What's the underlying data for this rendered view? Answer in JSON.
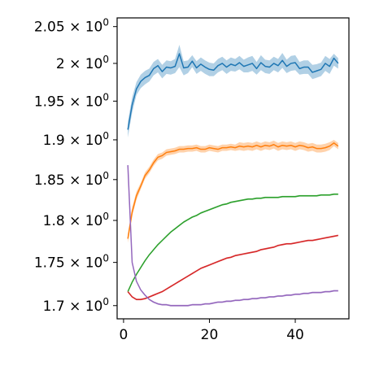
{
  "chart_data": {
    "type": "line",
    "title": "",
    "xlabel": "",
    "ylabel": "",
    "yscale": "log",
    "grid": false,
    "legend": "none",
    "xlim": [
      -1.5,
      52.5
    ],
    "ylim": [
      1.685,
      2.062
    ],
    "xticks": [
      {
        "value": 0,
        "label": "0"
      },
      {
        "value": 20,
        "label": "20"
      },
      {
        "value": 40,
        "label": "40"
      }
    ],
    "yticks": [
      {
        "value": 1.7,
        "base": "1.7"
      },
      {
        "value": 1.75,
        "base": "1.75"
      },
      {
        "value": 1.8,
        "base": "1.8"
      },
      {
        "value": 1.85,
        "base": "1.85"
      },
      {
        "value": 1.9,
        "base": "1.9"
      },
      {
        "value": 1.95,
        "base": "1.95"
      },
      {
        "value": 2.0,
        "base": "2"
      },
      {
        "value": 2.05,
        "base": "2.05"
      }
    ],
    "series": [
      {
        "color": "#1f77b4",
        "x": [
          1,
          2,
          3,
          4,
          5,
          6,
          7,
          8,
          9,
          10,
          11,
          12,
          13,
          14,
          15,
          16,
          17,
          18,
          19,
          20,
          21,
          22,
          23,
          24,
          25,
          26,
          27,
          28,
          29,
          30,
          31,
          32,
          33,
          34,
          35,
          36,
          37,
          38,
          39,
          40,
          41,
          42,
          43,
          44,
          45,
          46,
          47,
          48,
          49,
          50
        ],
        "y": [
          1.913,
          1.945,
          1.966,
          1.976,
          1.981,
          1.984,
          1.993,
          1.997,
          1.989,
          1.995,
          1.994,
          1.996,
          2.013,
          1.994,
          1.995,
          2.003,
          1.994,
          1.999,
          1.995,
          1.992,
          1.991,
          1.997,
          2.0,
          1.995,
          1.999,
          1.997,
          2.001,
          1.996,
          1.998,
          2.0,
          1.993,
          2.001,
          1.996,
          1.995,
          2.0,
          1.997,
          2.004,
          1.996,
          2.0,
          2.001,
          1.993,
          1.995,
          1.995,
          1.988,
          1.99,
          1.992,
          2.0,
          1.996,
          2.007,
          2.0
        ],
        "lower": [
          1.903,
          1.935,
          1.958,
          1.967,
          1.972,
          1.976,
          1.984,
          1.988,
          1.98,
          1.986,
          1.985,
          1.987,
          1.995,
          1.984,
          1.987,
          1.995,
          1.986,
          1.99,
          1.986,
          1.983,
          1.983,
          1.988,
          1.991,
          1.986,
          1.99,
          1.989,
          1.992,
          1.988,
          1.988,
          1.99,
          1.985,
          1.991,
          1.987,
          1.986,
          1.991,
          1.988,
          1.994,
          1.987,
          1.99,
          1.991,
          1.985,
          1.986,
          1.986,
          1.979,
          1.981,
          1.983,
          1.99,
          1.986,
          1.997,
          1.993
        ],
        "upper": [
          1.923,
          1.955,
          1.975,
          1.985,
          1.99,
          1.993,
          2.002,
          2.006,
          1.998,
          2.004,
          2.003,
          2.006,
          2.025,
          2.003,
          2.004,
          2.011,
          2.003,
          2.008,
          2.004,
          2.001,
          2.0,
          2.006,
          2.009,
          2.004,
          2.008,
          2.006,
          2.01,
          2.005,
          2.008,
          2.01,
          2.002,
          2.011,
          2.005,
          2.004,
          2.009,
          2.006,
          2.014,
          2.005,
          2.01,
          2.011,
          2.002,
          2.004,
          2.004,
          1.998,
          1.999,
          2.001,
          2.01,
          2.006,
          2.013,
          2.007
        ]
      },
      {
        "color": "#ff7f0e",
        "x": [
          1,
          2,
          3,
          4,
          5,
          6,
          7,
          8,
          9,
          10,
          11,
          12,
          13,
          14,
          15,
          16,
          17,
          18,
          19,
          20,
          21,
          22,
          23,
          24,
          25,
          26,
          27,
          28,
          29,
          30,
          31,
          32,
          33,
          34,
          35,
          36,
          37,
          38,
          39,
          40,
          41,
          42,
          43,
          44,
          45,
          46,
          47,
          48,
          49,
          50
        ],
        "y": [
          1.778,
          1.81,
          1.83,
          1.842,
          1.855,
          1.862,
          1.871,
          1.878,
          1.88,
          1.884,
          1.885,
          1.886,
          1.888,
          1.888,
          1.889,
          1.889,
          1.89,
          1.888,
          1.888,
          1.89,
          1.889,
          1.888,
          1.89,
          1.89,
          1.891,
          1.89,
          1.892,
          1.891,
          1.892,
          1.891,
          1.893,
          1.891,
          1.893,
          1.892,
          1.894,
          1.891,
          1.893,
          1.892,
          1.893,
          1.891,
          1.893,
          1.892,
          1.89,
          1.891,
          1.889,
          1.889,
          1.89,
          1.892,
          1.896,
          1.892
        ],
        "lower": [
          1.773,
          1.805,
          1.825,
          1.838,
          1.851,
          1.858,
          1.867,
          1.874,
          1.876,
          1.88,
          1.881,
          1.882,
          1.884,
          1.884,
          1.885,
          1.885,
          1.886,
          1.884,
          1.884,
          1.886,
          1.885,
          1.884,
          1.886,
          1.886,
          1.887,
          1.886,
          1.887,
          1.886,
          1.887,
          1.886,
          1.888,
          1.886,
          1.888,
          1.887,
          1.889,
          1.886,
          1.888,
          1.887,
          1.888,
          1.886,
          1.888,
          1.887,
          1.885,
          1.886,
          1.884,
          1.884,
          1.885,
          1.887,
          1.892,
          1.888
        ],
        "upper": [
          1.784,
          1.816,
          1.835,
          1.846,
          1.859,
          1.866,
          1.875,
          1.882,
          1.884,
          1.888,
          1.889,
          1.89,
          1.892,
          1.892,
          1.893,
          1.893,
          1.894,
          1.892,
          1.892,
          1.894,
          1.893,
          1.892,
          1.894,
          1.894,
          1.895,
          1.894,
          1.897,
          1.896,
          1.897,
          1.896,
          1.898,
          1.896,
          1.898,
          1.897,
          1.899,
          1.896,
          1.898,
          1.897,
          1.898,
          1.896,
          1.898,
          1.897,
          1.895,
          1.896,
          1.894,
          1.894,
          1.895,
          1.897,
          1.9,
          1.896
        ]
      },
      {
        "color": "#2ca02c",
        "x": [
          1,
          2,
          3,
          4,
          5,
          6,
          7,
          8,
          9,
          10,
          11,
          12,
          13,
          14,
          15,
          16,
          17,
          18,
          19,
          20,
          21,
          22,
          23,
          24,
          25,
          26,
          27,
          28,
          29,
          30,
          31,
          32,
          33,
          34,
          35,
          36,
          37,
          38,
          39,
          40,
          41,
          42,
          43,
          44,
          45,
          46,
          47,
          48,
          49,
          50
        ],
        "y": [
          1.716,
          1.727,
          1.736,
          1.744,
          1.752,
          1.759,
          1.765,
          1.771,
          1.776,
          1.781,
          1.786,
          1.79,
          1.794,
          1.798,
          1.801,
          1.804,
          1.806,
          1.809,
          1.811,
          1.813,
          1.815,
          1.817,
          1.819,
          1.82,
          1.822,
          1.823,
          1.824,
          1.825,
          1.826,
          1.826,
          1.827,
          1.827,
          1.828,
          1.828,
          1.828,
          1.828,
          1.829,
          1.829,
          1.829,
          1.829,
          1.83,
          1.83,
          1.83,
          1.83,
          1.83,
          1.831,
          1.831,
          1.831,
          1.832,
          1.832
        ],
        "lower": [
          1.715,
          1.726,
          1.735,
          1.743,
          1.751,
          1.758,
          1.764,
          1.77,
          1.775,
          1.78,
          1.785,
          1.789,
          1.793,
          1.797,
          1.8,
          1.803,
          1.805,
          1.808,
          1.81,
          1.812,
          1.814,
          1.816,
          1.818,
          1.819,
          1.821,
          1.822,
          1.823,
          1.824,
          1.825,
          1.825,
          1.826,
          1.826,
          1.827,
          1.827,
          1.827,
          1.827,
          1.828,
          1.828,
          1.828,
          1.828,
          1.829,
          1.829,
          1.829,
          1.829,
          1.829,
          1.83,
          1.83,
          1.83,
          1.831,
          1.831
        ],
        "upper": [
          1.717,
          1.728,
          1.737,
          1.745,
          1.753,
          1.76,
          1.766,
          1.772,
          1.777,
          1.782,
          1.787,
          1.791,
          1.795,
          1.799,
          1.802,
          1.805,
          1.807,
          1.81,
          1.812,
          1.814,
          1.816,
          1.818,
          1.82,
          1.821,
          1.823,
          1.824,
          1.825,
          1.826,
          1.827,
          1.827,
          1.828,
          1.828,
          1.829,
          1.829,
          1.829,
          1.829,
          1.83,
          1.83,
          1.83,
          1.83,
          1.831,
          1.831,
          1.831,
          1.831,
          1.831,
          1.832,
          1.832,
          1.832,
          1.833,
          1.833
        ]
      },
      {
        "color": "#d62728",
        "x": [
          1,
          2,
          3,
          4,
          5,
          6,
          7,
          8,
          9,
          10,
          11,
          12,
          13,
          14,
          15,
          16,
          17,
          18,
          19,
          20,
          21,
          22,
          23,
          24,
          25,
          26,
          27,
          28,
          29,
          30,
          31,
          32,
          33,
          34,
          35,
          36,
          37,
          38,
          39,
          40,
          41,
          42,
          43,
          44,
          45,
          46,
          47,
          48,
          49,
          50
        ],
        "y": [
          1.716,
          1.71,
          1.707,
          1.707,
          1.708,
          1.71,
          1.712,
          1.714,
          1.716,
          1.719,
          1.722,
          1.725,
          1.728,
          1.731,
          1.734,
          1.737,
          1.74,
          1.743,
          1.745,
          1.747,
          1.749,
          1.751,
          1.753,
          1.755,
          1.756,
          1.758,
          1.759,
          1.76,
          1.761,
          1.762,
          1.763,
          1.765,
          1.766,
          1.767,
          1.768,
          1.77,
          1.771,
          1.772,
          1.772,
          1.773,
          1.774,
          1.775,
          1.776,
          1.776,
          1.777,
          1.778,
          1.779,
          1.78,
          1.781,
          1.782
        ],
        "lower": [
          1.715,
          1.709,
          1.706,
          1.706,
          1.707,
          1.709,
          1.711,
          1.713,
          1.715,
          1.718,
          1.721,
          1.724,
          1.727,
          1.73,
          1.733,
          1.736,
          1.739,
          1.742,
          1.744,
          1.746,
          1.748,
          1.75,
          1.752,
          1.754,
          1.755,
          1.757,
          1.758,
          1.759,
          1.76,
          1.761,
          1.762,
          1.764,
          1.765,
          1.766,
          1.767,
          1.769,
          1.77,
          1.771,
          1.771,
          1.772,
          1.773,
          1.774,
          1.775,
          1.775,
          1.776,
          1.777,
          1.778,
          1.779,
          1.78,
          1.781
        ],
        "upper": [
          1.717,
          1.711,
          1.708,
          1.708,
          1.709,
          1.711,
          1.713,
          1.715,
          1.717,
          1.72,
          1.723,
          1.726,
          1.729,
          1.732,
          1.735,
          1.738,
          1.741,
          1.744,
          1.746,
          1.748,
          1.75,
          1.752,
          1.754,
          1.756,
          1.757,
          1.759,
          1.76,
          1.761,
          1.762,
          1.763,
          1.764,
          1.766,
          1.767,
          1.768,
          1.769,
          1.771,
          1.772,
          1.773,
          1.773,
          1.774,
          1.775,
          1.776,
          1.777,
          1.777,
          1.778,
          1.779,
          1.78,
          1.781,
          1.782,
          1.783
        ]
      },
      {
        "color": "#9467bd",
        "x": [
          1,
          2,
          3,
          4,
          5,
          6,
          7,
          8,
          9,
          10,
          11,
          12,
          13,
          14,
          15,
          16,
          17,
          18,
          19,
          20,
          21,
          22,
          23,
          24,
          25,
          26,
          27,
          28,
          29,
          30,
          31,
          32,
          33,
          34,
          35,
          36,
          37,
          38,
          39,
          40,
          41,
          42,
          43,
          44,
          45,
          46,
          47,
          48,
          49,
          50
        ],
        "y": [
          1.868,
          1.75,
          1.728,
          1.718,
          1.712,
          1.707,
          1.704,
          1.702,
          1.701,
          1.701,
          1.7,
          1.7,
          1.7,
          1.7,
          1.7,
          1.701,
          1.701,
          1.701,
          1.702,
          1.702,
          1.703,
          1.704,
          1.704,
          1.705,
          1.705,
          1.706,
          1.706,
          1.707,
          1.707,
          1.708,
          1.708,
          1.709,
          1.709,
          1.71,
          1.71,
          1.711,
          1.711,
          1.712,
          1.712,
          1.713,
          1.713,
          1.714,
          1.714,
          1.715,
          1.715,
          1.715,
          1.716,
          1.716,
          1.717,
          1.717
        ],
        "lower": [
          1.867,
          1.749,
          1.727,
          1.717,
          1.711,
          1.706,
          1.703,
          1.701,
          1.7,
          1.7,
          1.699,
          1.699,
          1.699,
          1.699,
          1.699,
          1.7,
          1.7,
          1.7,
          1.701,
          1.701,
          1.702,
          1.703,
          1.703,
          1.704,
          1.704,
          1.705,
          1.705,
          1.706,
          1.706,
          1.707,
          1.707,
          1.708,
          1.708,
          1.709,
          1.709,
          1.71,
          1.71,
          1.711,
          1.711,
          1.712,
          1.712,
          1.713,
          1.713,
          1.714,
          1.714,
          1.714,
          1.715,
          1.715,
          1.716,
          1.716
        ],
        "upper": [
          1.869,
          1.751,
          1.729,
          1.719,
          1.713,
          1.708,
          1.705,
          1.703,
          1.702,
          1.702,
          1.701,
          1.701,
          1.701,
          1.701,
          1.701,
          1.702,
          1.702,
          1.702,
          1.703,
          1.703,
          1.704,
          1.705,
          1.705,
          1.706,
          1.706,
          1.707,
          1.707,
          1.708,
          1.708,
          1.709,
          1.709,
          1.71,
          1.71,
          1.711,
          1.711,
          1.712,
          1.712,
          1.713,
          1.713,
          1.714,
          1.714,
          1.715,
          1.715,
          1.716,
          1.716,
          1.716,
          1.717,
          1.717,
          1.718,
          1.718
        ]
      }
    ]
  }
}
